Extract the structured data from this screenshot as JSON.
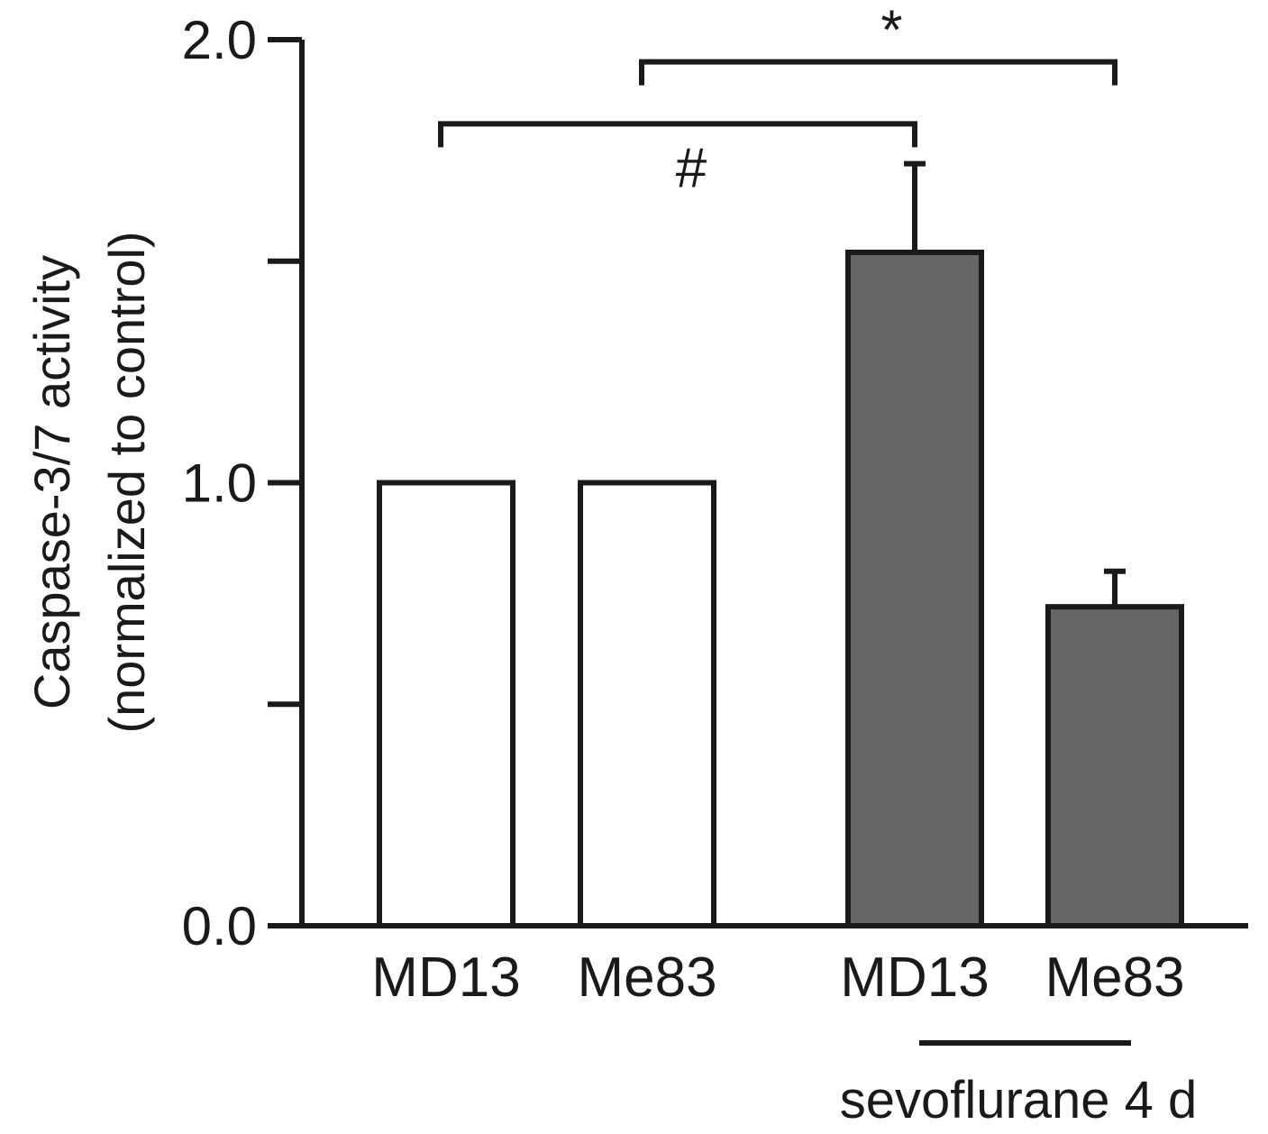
{
  "chart_data": {
    "type": "bar",
    "ylabel_line1": "Caspase-3/7 activity",
    "ylabel_line2": "(normalized to control)",
    "ylim": [
      0,
      2.0
    ],
    "yticks": [
      0.0,
      0.5,
      1.0,
      1.5,
      2.0
    ],
    "ytick_labels": [
      "0.0",
      "",
      "1.0",
      "",
      "2.0"
    ],
    "categories": [
      "MD13",
      "Me83",
      "MD13",
      "Me83"
    ],
    "values": [
      1.0,
      1.0,
      1.52,
      0.72
    ],
    "errors": [
      null,
      null,
      0.2,
      0.08
    ],
    "fill_colors": [
      "#ffffff",
      "#ffffff",
      "#666666",
      "#666666"
    ],
    "group_label": "sevoflurane 4 d",
    "group_span": [
      2,
      3
    ],
    "significance": [
      {
        "label": "*",
        "from": 1,
        "to": 3,
        "level": 1.95
      },
      {
        "label": "#",
        "from": 0,
        "to": 2,
        "level": 1.81
      }
    ]
  }
}
